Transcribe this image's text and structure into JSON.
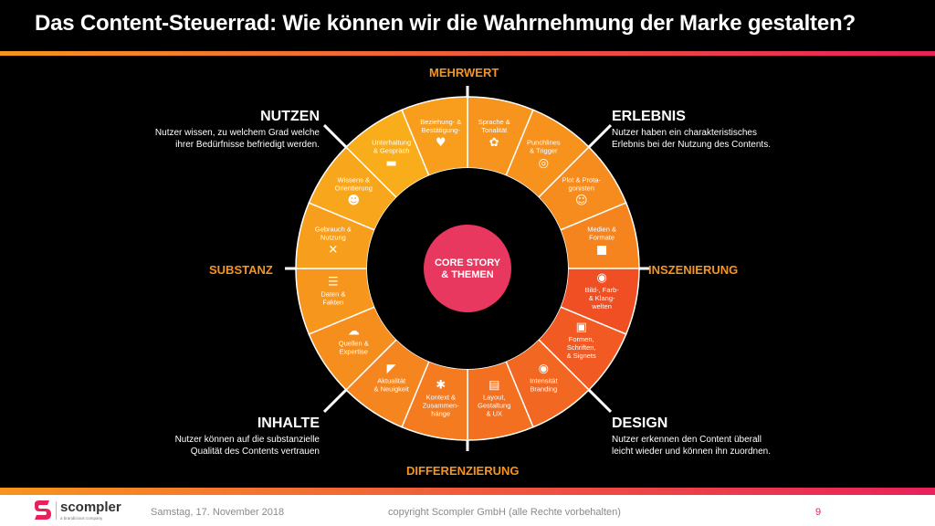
{
  "title": "Das Content-Steuerrad: Wie können wir die Wahrnehmung der Marke gestalten?",
  "axes": {
    "top": "MEHRWERT",
    "bottom": "DIFFERENZIERUNG",
    "left": "SUBSTANZ",
    "right": "INSZENIERUNG"
  },
  "corners": {
    "top_left": {
      "heading": "NUTZEN",
      "text1": "Nutzer wissen, zu welchem Grad welche",
      "text2": "ihrer Bedürfnisse befriedigt werden."
    },
    "top_right": {
      "heading": "ERLEBNIS",
      "text1": "Nutzer haben ein charakteristisches",
      "text2": "Erlebnis bei der Nutzung des Contents."
    },
    "bottom_left": {
      "heading": "INHALTE",
      "text1": "Nutzer können auf die substanzielle",
      "text2": "Qualität des Contents vertrauen"
    },
    "bottom_right": {
      "heading": "DESIGN",
      "text1": "Nutzer erkennen  den Content überall",
      "text2": "leicht wieder und können ihn zuordnen."
    }
  },
  "core": {
    "line1": "CORE STORY",
    "line2": "& THEMEN"
  },
  "segments": [
    {
      "label": [
        "Sprache &",
        "Tonalität"
      ],
      "icon": "tulip-icon",
      "color": "#f7941d"
    },
    {
      "label": [
        "Punchlines",
        "& Trigger"
      ],
      "icon": "target-icon",
      "color": "#f7921c"
    },
    {
      "label": [
        "Plot & Prota-",
        "gonisten"
      ],
      "icon": "masks-icon",
      "color": "#f68c1e"
    },
    {
      "label": [
        "Medien &",
        "Formate"
      ],
      "icon": "camera-icon",
      "color": "#f5841f"
    },
    {
      "label": [
        "Bild-, Farb-",
        "& Klang-",
        "welten"
      ],
      "icon": "palette-icon",
      "color": "#f04e23"
    },
    {
      "label": [
        "Formen,",
        "Schriften,",
        "& Signets"
      ],
      "icon": "shapes-icon",
      "color": "#f15a22"
    },
    {
      "label": [
        "Intensität",
        "Branding"
      ],
      "icon": "eye-icon",
      "color": "#f26722"
    },
    {
      "label": [
        "Layout,",
        "Gestaltung",
        "& UX"
      ],
      "icon": "layout-icon",
      "color": "#f37021"
    },
    {
      "label": [
        "Kontext &",
        "Zusammen-",
        "hänge"
      ],
      "icon": "gears-icon",
      "color": "#f47b20"
    },
    {
      "label": [
        "Aktualität",
        "& Neuigkeit"
      ],
      "icon": "satellite-icon",
      "color": "#f5851f"
    },
    {
      "label": [
        "Quellen &",
        "Expertise"
      ],
      "icon": "cloud-icon",
      "color": "#f68e1e"
    },
    {
      "label": [
        "Daten &",
        "Fakten"
      ],
      "icon": "checklist-icon",
      "color": "#f7961d"
    },
    {
      "label": [
        "Gebrauch &",
        "Nutzung"
      ],
      "icon": "tools-icon",
      "color": "#f79e1c"
    },
    {
      "label": [
        "Wissens &",
        "Orientierung"
      ],
      "icon": "head-icon",
      "color": "#f8a61b"
    },
    {
      "label": [
        "Unterhaltung",
        "& Gespräch"
      ],
      "icon": "chat-icon",
      "color": "#f9ad1a"
    },
    {
      "label": [
        "Beziehung- &",
        "Bestätigung-"
      ],
      "icon": "heart-icon",
      "color": "#f99d1c"
    }
  ],
  "footer": {
    "date": "Samstag, 17. November 2018",
    "copyright": "copyright Scompler GmbH (alle Rechte vorbehalten)",
    "page": "9",
    "logo_name": "scompler",
    "logo_sub": "a brandicious company"
  }
}
